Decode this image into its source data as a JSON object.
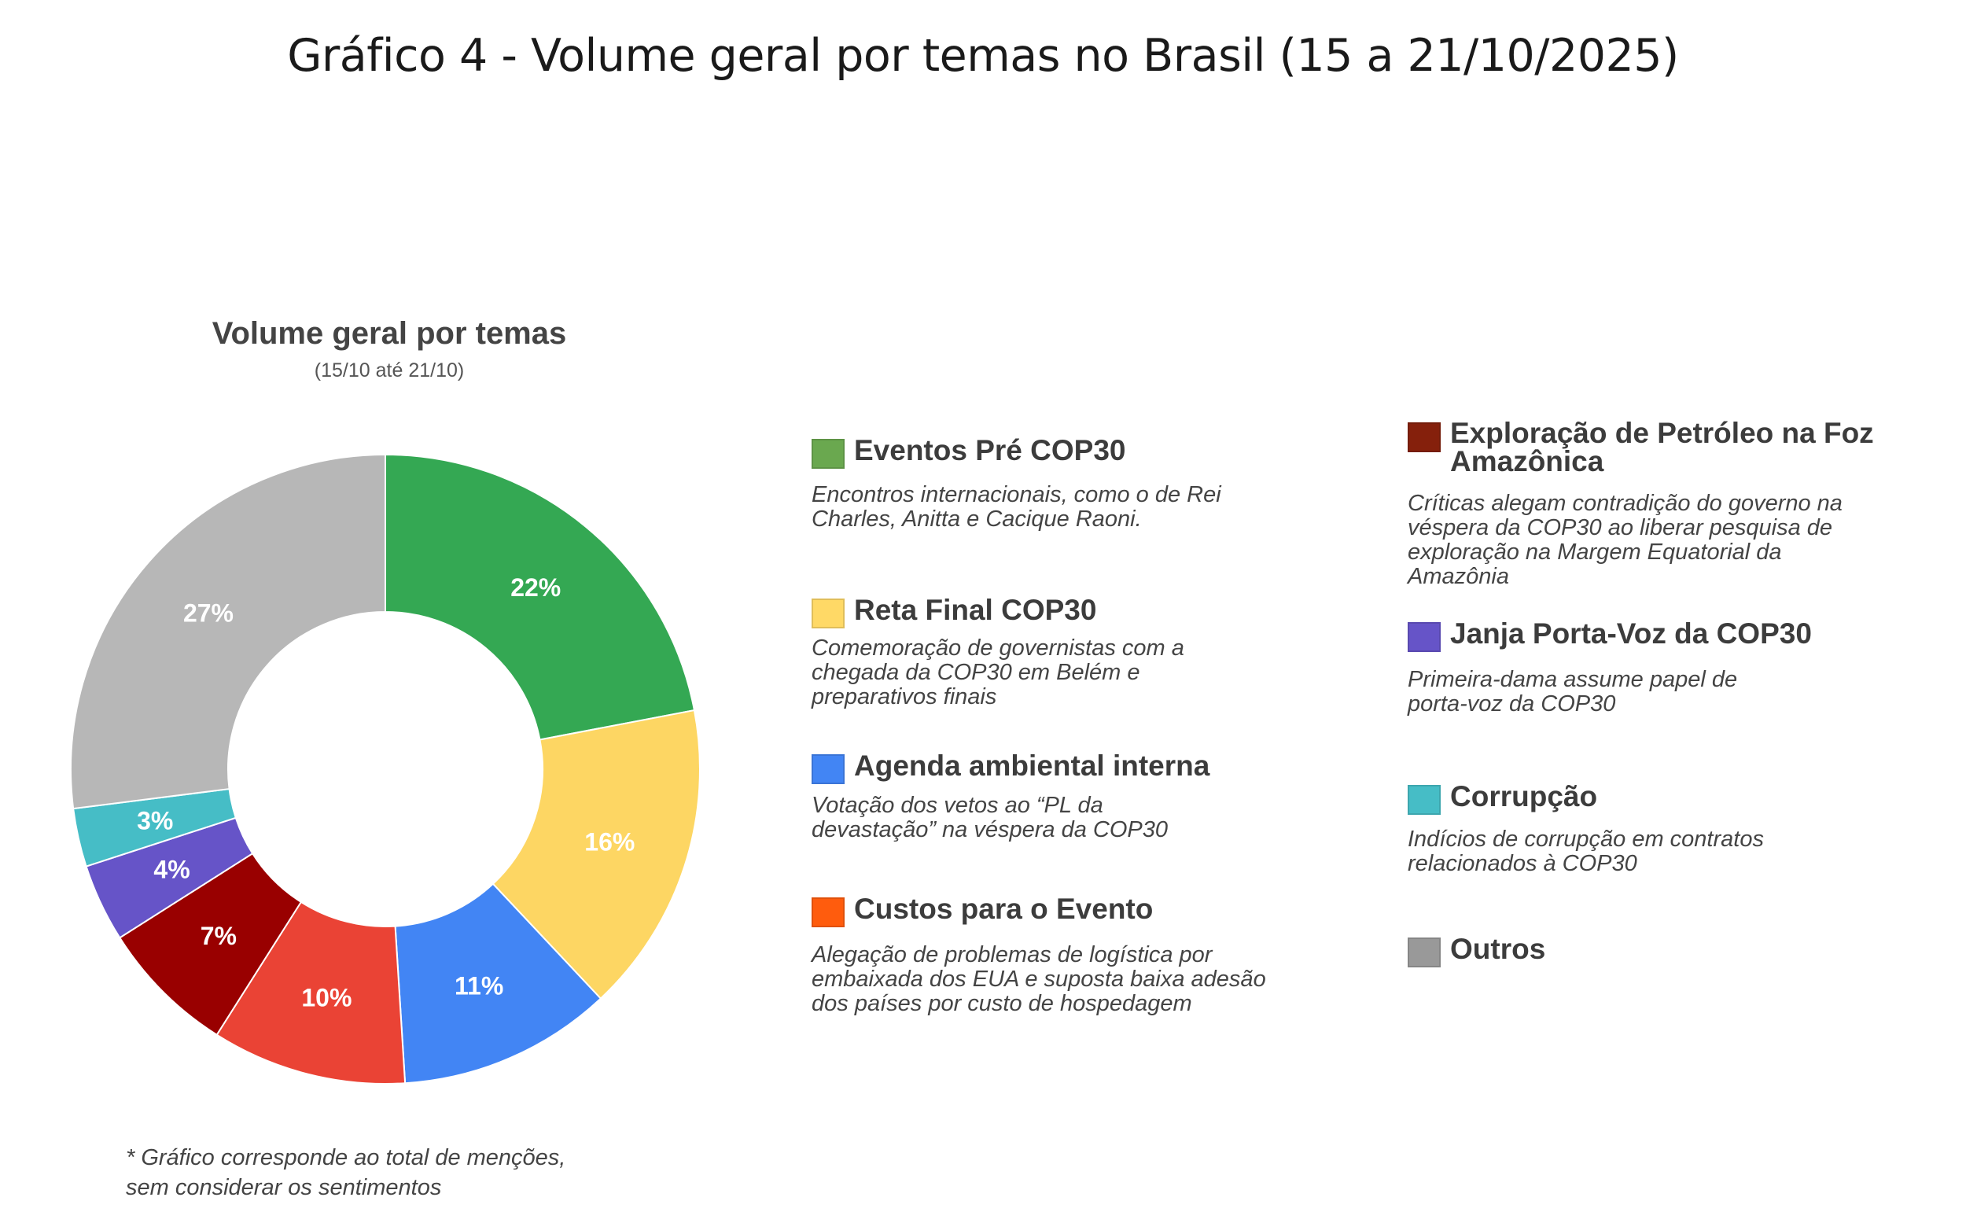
{
  "page_title": "Gráfico 4 - Volume geral por temas no Brasil (15 a 21/10/2025)",
  "footnote": "* Gráfico corresponde ao total de menções,\nsem considerar os sentimentos",
  "chart_data": {
    "type": "pie",
    "title": "Volume geral por temas",
    "subtitle": "(15/10 até 21/10)",
    "donut": true,
    "slices": [
      {
        "name": "Eventos Pré COP30",
        "value": 22,
        "label": "22%",
        "color": "#34a853"
      },
      {
        "name": "Reta Final COP30",
        "value": 16,
        "label": "16%",
        "color": "#fdd663"
      },
      {
        "name": "Agenda ambiental interna",
        "value": 11,
        "label": "11%",
        "color": "#4285f4"
      },
      {
        "name": "Custos para o Evento",
        "value": 10,
        "label": "10%",
        "color": "#ea4335"
      },
      {
        "name": "Exploração de Petróleo na Foz Amazônica",
        "value": 7,
        "label": "7%",
        "color": "#990000"
      },
      {
        "name": "Janja Porta-Voz da COP30",
        "value": 4,
        "label": "4%",
        "color": "#6654c8"
      },
      {
        "name": "Corrupção",
        "value": 3,
        "label": "3%",
        "color": "#46bdc6"
      },
      {
        "name": "Outros",
        "value": 27,
        "label": "27%",
        "color": "#b7b7b7"
      }
    ]
  },
  "legend": {
    "items": [
      {
        "label": "Eventos Pré COP30",
        "desc": "Encontros internacionais, como o de Rei\nCharles, Anitta e Cacique Raoni.",
        "color": "#6aa84f"
      },
      {
        "label": "Reta Final COP30",
        "desc": "Comemoração de governistas com a\nchegada da COP30 em Belém e\npreparativos finais",
        "color": "#ffd966"
      },
      {
        "label": "Agenda ambiental interna",
        "desc": "Votação dos vetos ao “PL da\ndevastação” na véspera da COP30",
        "color": "#4285f4"
      },
      {
        "label": "Custos para o Evento",
        "desc": "Alegação de problemas de logística por\nembaixada dos EUA e suposta baixa adesão\ndos países por custo de hospedagem",
        "color": "#ff5c0d"
      },
      {
        "label": "Exploração de Petróleo na Foz\nAmazônica",
        "desc": "Críticas alegam contradição do governo na\nvéspera da COP30 ao liberar pesquisa de\nexploração na Margem Equatorial da\nAmazônia",
        "color": "#85200c"
      },
      {
        "label": "Janja Porta-Voz da COP30",
        "desc": "Primeira-dama assume papel de\nporta-voz da COP30",
        "color": "#6654c8"
      },
      {
        "label": "Corrupção",
        "desc": "Indícios de corrupção em contratos\nrelacionados à COP30",
        "color": "#46bdc6"
      },
      {
        "label": "Outros",
        "desc": "",
        "color": "#999999"
      }
    ]
  }
}
